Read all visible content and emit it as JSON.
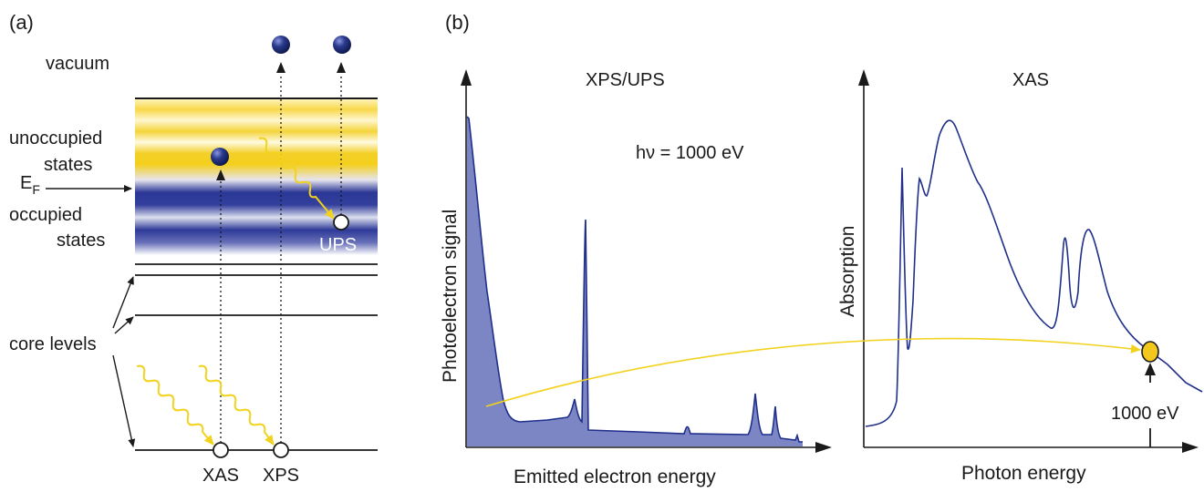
{
  "panel_a": {
    "label": "(a)",
    "vacuum": "vacuum",
    "unoccupied": [
      "unoccupied",
      "states"
    ],
    "ef_main": "E",
    "ef_sub": "F",
    "occupied": [
      "occupied",
      "states"
    ],
    "core_levels": "core levels",
    "xas": "XAS",
    "xps": "XPS",
    "ups": "UPS"
  },
  "panel_b": {
    "label": "(b)",
    "xps_title": "XPS/UPS",
    "hv": "hν = 1000 eV",
    "xps_ylabel": "Photoelectron signal",
    "xps_xlabel": "Emitted electron energy",
    "xas_title": "XAS",
    "xas_ylabel": "Absorption",
    "xas_xlabel": "Photon energy",
    "marker": "1000 eV"
  },
  "colors": {
    "navy": "#1f2f8a",
    "spectrum_fill": "#7c86c4",
    "yellow": "#f2d21c",
    "electron": "#2a3a8c"
  }
}
